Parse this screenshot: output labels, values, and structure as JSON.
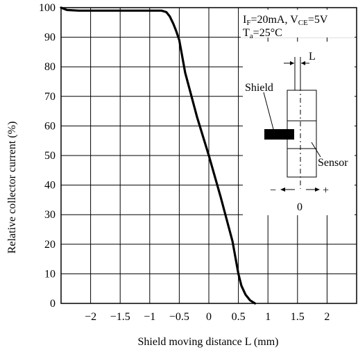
{
  "chart_data": {
    "type": "line",
    "xlabel": "Shield moving distance L (mm)",
    "ylabel": "Relative collector current (%)",
    "xlim": [
      -2.5,
      2.5
    ],
    "ylim": [
      0,
      100
    ],
    "xticks": [
      -2,
      -1.5,
      -1,
      -0.5,
      0,
      0.5,
      1,
      1.5,
      2
    ],
    "xtick_labels": [
      "−2",
      "−1.5",
      "−1",
      "−0.5",
      "0",
      "0.5",
      "1",
      "1.5",
      "2"
    ],
    "yticks": [
      0,
      10,
      20,
      30,
      40,
      50,
      60,
      70,
      80,
      90,
      100
    ],
    "grid": true,
    "series": [
      {
        "x": [
          -2.5,
          -2.45,
          -2.4,
          -2.2,
          -1.5,
          -1.0,
          -0.8,
          -0.72,
          -0.66,
          -0.6,
          -0.55,
          -0.5,
          -0.4,
          -0.2,
          0.0,
          0.2,
          0.4,
          0.5,
          0.55,
          0.62,
          0.7,
          0.78
        ],
        "y": [
          100,
          99.6,
          99.2,
          99,
          99,
          99,
          99,
          98.5,
          97,
          94.5,
          92,
          89,
          78,
          63,
          50,
          36,
          21,
          10,
          6,
          3,
          1,
          0
        ]
      }
    ]
  },
  "conditions": {
    "line1_if": "I",
    "line1_if_sub": "F",
    "line1_mid": "=20mA, V",
    "line1_vce_sub": "CE",
    "line1_end": "=5V",
    "line2_t": "T",
    "line2_t_sub": "a",
    "line2_end": "=25°C"
  },
  "inset": {
    "label_L": "L",
    "label_shield": "Shield",
    "label_sensor": "Sensor",
    "label_minus": "−",
    "label_plus": "+",
    "label_zero": "0"
  }
}
